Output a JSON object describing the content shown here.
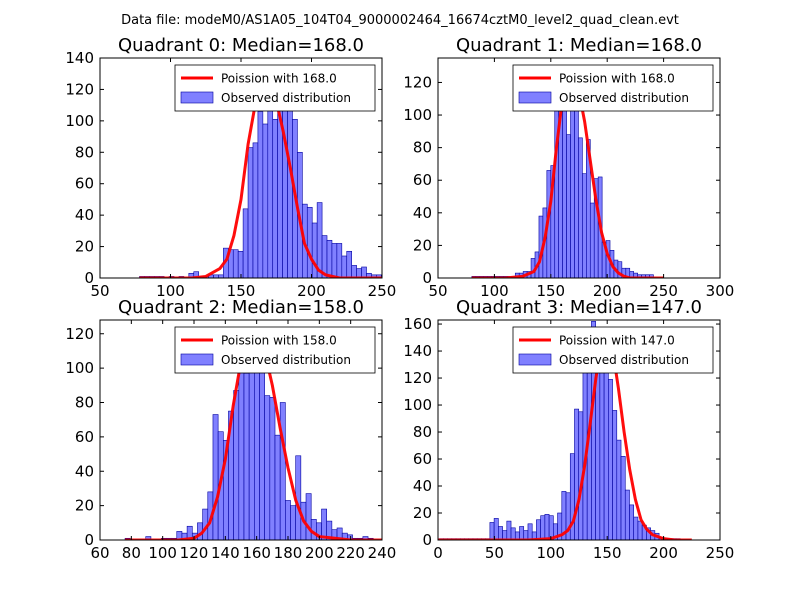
{
  "figure_title": "Data file: modeM0/AS1A05_104T04_9000002464_16674cztM0_level2_quad_clean.evt",
  "colors": {
    "hist_fill": "#8080ff",
    "hist_edge": "#0000a0",
    "poisson": "#ff0000"
  },
  "chart_data": [
    {
      "type": "bar",
      "title": "Quadrant 0: Median=168.0",
      "xlim": [
        50,
        250
      ],
      "ylim": [
        0,
        140
      ],
      "xticks": [
        50,
        100,
        150,
        200,
        250
      ],
      "yticks": [
        0,
        20,
        40,
        60,
        80,
        100,
        120,
        140
      ],
      "legend_poisson": "Poission with 168.0",
      "legend_observed": "Observed distribution",
      "bin_start": 78,
      "bin_width": 3.5,
      "values": [
        1,
        1,
        1,
        1,
        1,
        0,
        1,
        0,
        1,
        0,
        3,
        4,
        1,
        1,
        2,
        2,
        2,
        19,
        18,
        18,
        17,
        44,
        83,
        86,
        106,
        98,
        130,
        101,
        130,
        124,
        118,
        101,
        80,
        47,
        45,
        35,
        48,
        27,
        24,
        22,
        22,
        14,
        17,
        8,
        6,
        7,
        3,
        2,
        2,
        2
      ],
      "poisson": {
        "x": [
          78,
          100,
          115,
          125,
          135,
          140,
          145,
          150,
          155,
          160,
          165,
          170,
          175,
          180,
          185,
          190,
          195,
          200,
          205,
          210,
          215,
          220,
          230,
          250
        ],
        "y": [
          0,
          0,
          0,
          1,
          6,
          12,
          27,
          50,
          85,
          110,
          128,
          126,
          113,
          93,
          70,
          45,
          22,
          12,
          5,
          2,
          1,
          0,
          0,
          0
        ]
      }
    },
    {
      "type": "bar",
      "title": "Quadrant 1: Median=168.0",
      "xlim": [
        50,
        300
      ],
      "ylim": [
        0,
        135
      ],
      "xticks": [
        50,
        100,
        150,
        200,
        250,
        300
      ],
      "yticks": [
        0,
        20,
        40,
        60,
        80,
        100,
        120
      ],
      "legend_poisson": "Poission with 168.0",
      "legend_observed": "Observed distribution",
      "bin_start": 80,
      "bin_width": 3.5,
      "values": [
        1,
        1,
        1,
        1,
        1,
        1,
        1,
        1,
        1,
        1,
        1,
        3,
        3,
        4,
        4,
        12,
        16,
        38,
        43,
        66,
        69,
        104,
        130,
        114,
        88,
        108,
        103,
        86,
        64,
        85,
        46,
        61,
        62,
        22,
        23,
        17,
        11,
        10,
        6,
        6,
        4,
        3,
        2,
        2,
        2,
        2
      ],
      "poisson": {
        "x": [
          80,
          110,
          125,
          135,
          140,
          145,
          150,
          155,
          160,
          165,
          170,
          175,
          180,
          185,
          190,
          195,
          200,
          205,
          210,
          215,
          220,
          230,
          250
        ],
        "y": [
          0,
          0,
          1,
          4,
          10,
          25,
          47,
          80,
          108,
          127,
          128,
          114,
          96,
          72,
          48,
          28,
          15,
          7,
          3,
          1,
          0,
          0,
          0
        ]
      }
    },
    {
      "type": "bar",
      "title": "Quadrant 2: Median=158.0",
      "xlim": [
        60,
        240
      ],
      "ylim": [
        0,
        128
      ],
      "xticks": [
        60,
        80,
        100,
        120,
        140,
        160,
        180,
        200,
        220,
        240
      ],
      "yticks": [
        0,
        20,
        40,
        60,
        80,
        100,
        120
      ],
      "legend_poisson": "Poission with 158.0",
      "legend_observed": "Observed distribution",
      "bin_start": 76,
      "bin_width": 3.3,
      "values": [
        1,
        0,
        0,
        0,
        2,
        0,
        0,
        1,
        1,
        1,
        5,
        4,
        8,
        4,
        10,
        18,
        28,
        73,
        63,
        58,
        75,
        87,
        106,
        97,
        119,
        113,
        98,
        84,
        83,
        61,
        80,
        23,
        20,
        49,
        22,
        27,
        12,
        10,
        18,
        11,
        6,
        7,
        4,
        3,
        1,
        1,
        2,
        1
      ],
      "poisson": {
        "x": [
          76,
          100,
          110,
          120,
          125,
          130,
          135,
          140,
          145,
          150,
          155,
          160,
          165,
          170,
          175,
          180,
          185,
          190,
          195,
          200,
          210,
          220,
          240
        ],
        "y": [
          0,
          0,
          0,
          1,
          4,
          10,
          25,
          47,
          78,
          104,
          122,
          123,
          110,
          90,
          65,
          42,
          23,
          11,
          5,
          2,
          1,
          0,
          0
        ]
      }
    },
    {
      "type": "bar",
      "title": "Quadrant 3: Median=147.0",
      "xlim": [
        0,
        250
      ],
      "ylim": [
        0,
        163
      ],
      "xticks": [
        0,
        50,
        100,
        150,
        200,
        250
      ],
      "yticks": [
        0,
        20,
        40,
        60,
        80,
        100,
        120,
        140,
        160
      ],
      "legend_poisson": "Poission with 147.0",
      "legend_observed": "Observed distribution",
      "bin_start": 1,
      "bin_width": 3.75,
      "values": [
        1,
        1,
        1,
        1,
        1,
        1,
        1,
        1,
        1,
        1,
        1,
        1,
        13,
        16,
        10,
        7,
        14,
        9,
        6,
        10,
        7,
        12,
        6,
        15,
        18,
        19,
        18,
        12,
        20,
        36,
        35,
        64,
        97,
        95,
        130,
        155,
        162,
        128,
        134,
        137,
        119,
        96,
        74,
        62,
        37,
        26,
        17,
        14,
        11,
        9,
        7,
        5,
        2,
        1,
        1,
        1,
        1
      ],
      "poisson": {
        "x": [
          0,
          80,
          100,
          110,
          115,
          120,
          125,
          130,
          135,
          140,
          145,
          150,
          155,
          160,
          165,
          170,
          175,
          180,
          185,
          190,
          200,
          210,
          225
        ],
        "y": [
          0,
          0,
          1,
          4,
          7,
          14,
          30,
          55,
          87,
          120,
          145,
          152,
          140,
          112,
          80,
          52,
          30,
          15,
          8,
          4,
          1,
          0,
          0
        ]
      }
    }
  ]
}
